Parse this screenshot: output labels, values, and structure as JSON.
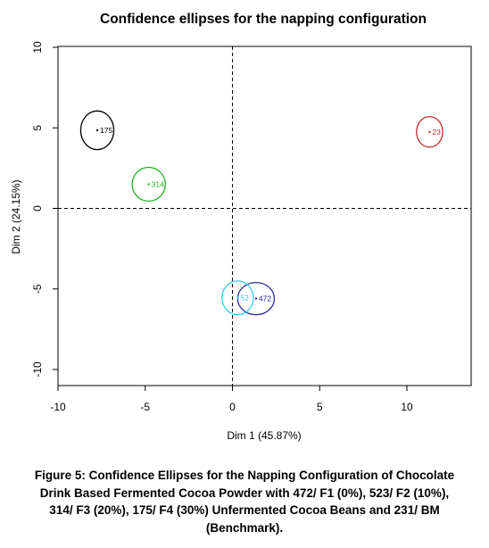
{
  "chart_data": {
    "type": "scatter",
    "title": "Confidence ellipses for the napping configuration",
    "xlabel": "Dim 1 (45.87%)",
    "ylabel": "Dim 2 (24.15%)",
    "xlim": [
      -10,
      14
    ],
    "ylim": [
      -11,
      10
    ],
    "x_ticks": [
      -10,
      -5,
      0,
      5,
      10
    ],
    "y_ticks": [
      -10,
      -5,
      0,
      5,
      10
    ],
    "grid": false,
    "reference_lines": [
      0,
      0
    ],
    "points": [
      {
        "label": "175",
        "x": -7.75,
        "y": 4.85,
        "rx": 0.95,
        "ry": 1.2,
        "color": "#000000"
      },
      {
        "label": "314",
        "x": -4.8,
        "y": 1.5,
        "rx": 0.95,
        "ry": 1.05,
        "color": "#22b022"
      },
      {
        "label": "23",
        "x": 11.3,
        "y": 4.75,
        "rx": 0.75,
        "ry": 0.95,
        "color": "#c0282b"
      },
      {
        "label": "472",
        "x": 1.35,
        "y": -5.6,
        "rx": 1.05,
        "ry": 1.0,
        "color": "#2a2a9e"
      },
      {
        "label": "52",
        "x": 0.3,
        "y": -5.55,
        "rx": 0.9,
        "ry": 1.05,
        "color": "#33ccee"
      }
    ]
  },
  "caption": {
    "lines": [
      "Figure 5: Confidence Ellipses for the Napping Configuration of Chocolate",
      "Drink Based Fermented Cocoa Powder with 472/ F1 (0%), 523/ F2 (10%),",
      "314/ F3 (20%), 175/ F4 (30%) Unfermented Cocoa Beans and 231/ BM",
      "(Benchmark)."
    ]
  }
}
